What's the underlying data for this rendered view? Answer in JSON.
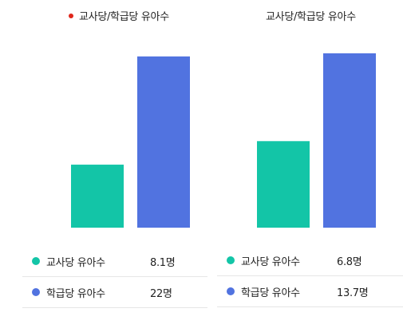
{
  "colors": {
    "teal": "#13c5a7",
    "blue": "#5173e0",
    "title_dot": "#e0261b"
  },
  "chart_data": [
    {
      "type": "bar",
      "title": "교사당/학급당 유아수",
      "categories": [
        "교사당 유아수",
        "학급당 유아수"
      ],
      "values": [
        8.1,
        22
      ],
      "value_labels": [
        "8.1명",
        "22명"
      ],
      "colors": [
        "#13c5a7",
        "#5173e0"
      ],
      "ylim": [
        0,
        22.5
      ],
      "grid": false,
      "legend": "bottom"
    },
    {
      "type": "bar",
      "title": "교사당/학급당 유아수",
      "categories": [
        "교사당 유아수",
        "학급당 유아수"
      ],
      "values": [
        6.8,
        13.7
      ],
      "value_labels": [
        "6.8명",
        "13.7명"
      ],
      "colors": [
        "#13c5a7",
        "#5173e0"
      ],
      "ylim": [
        0,
        14.2
      ],
      "grid": false,
      "legend": "bottom"
    }
  ]
}
